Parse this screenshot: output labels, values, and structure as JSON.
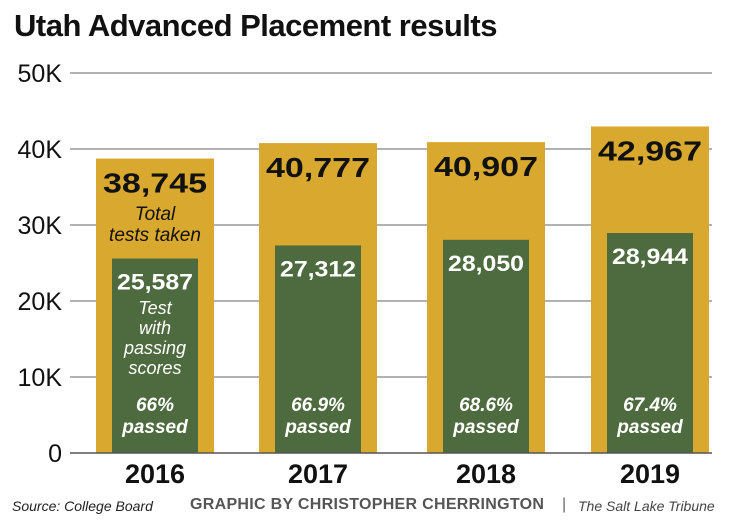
{
  "chart_data": {
    "type": "bar",
    "title": "Utah Advanced Placement results",
    "categories": [
      "2016",
      "2017",
      "2018",
      "2019"
    ],
    "series": [
      {
        "name": "Total tests taken",
        "values": [
          38745,
          40777,
          40907,
          42967
        ]
      },
      {
        "name": "Test with passing scores",
        "values": [
          25587,
          27312,
          28050,
          28944
        ]
      }
    ],
    "total_labels": [
      "38,745",
      "40,777",
      "40,907",
      "42,967"
    ],
    "passing_labels": [
      "25,587",
      "27,312",
      "28,050",
      "28,944"
    ],
    "pass_rate_labels": [
      "66%",
      "66.9%",
      "68.6%",
      "67.4%"
    ],
    "passed_word": "passed",
    "total_note": [
      "Total",
      "tests taken"
    ],
    "passing_note": [
      "Test",
      "with",
      "passing",
      "scores"
    ],
    "y_ticks": [
      0,
      10000,
      20000,
      30000,
      40000,
      50000
    ],
    "y_tick_labels": [
      "0",
      "10K",
      "20K",
      "30K",
      "40K",
      "50K"
    ],
    "ylim": [
      0,
      50000
    ],
    "grid": true,
    "colors": {
      "total": "#D9A92F",
      "passing": "#4E6B3F",
      "grid": "#999999"
    }
  },
  "footer": {
    "source": "Source: College Board",
    "credit": "GRAPHIC BY CHRISTOPHER CHERRINGTON",
    "separator": "|",
    "publication": "The Salt Lake Tribune"
  }
}
